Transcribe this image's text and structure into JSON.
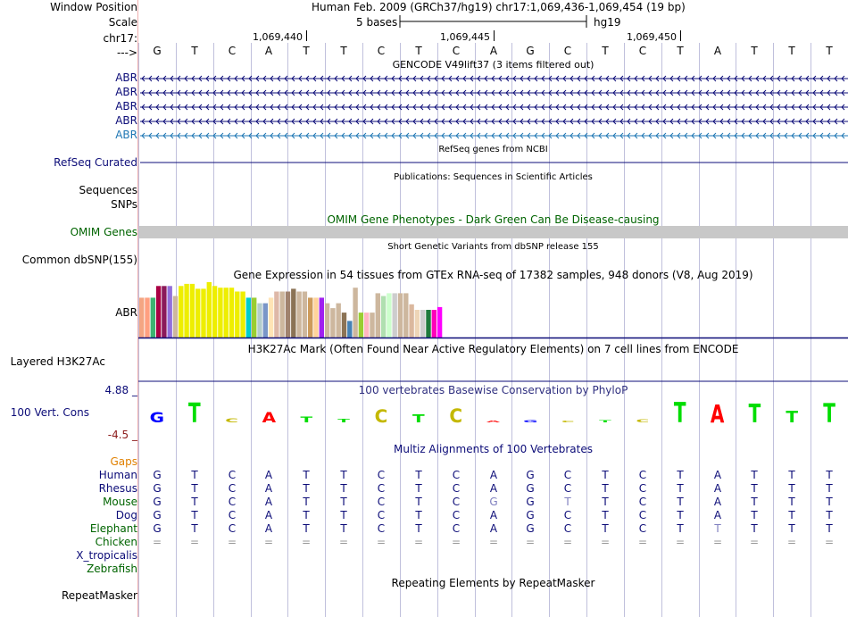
{
  "colors": {
    "navy": "#0c0c78",
    "gencode_last": "#1f77b4",
    "omim_label": "#006400",
    "omim_bar": "#c8c8c8",
    "gaps": "#e08000",
    "guide": "#c0c0dc",
    "cons_title": "#303080",
    "maroon": "#8b1a1a"
  },
  "position": {
    "window_label": "Window Position",
    "scale_label": "Scale",
    "chrom_label": "chr17:",
    "arrow_label": "--->",
    "assembly_text": "Human Feb. 2009 (GRCh37/hg19)   chr17:1,069,436-1,069,454 (19 bp)",
    "scale_text": "5 bases",
    "db_text": "hg19",
    "ticks": [
      "1,069,440",
      "1,069,445",
      "1,069,450"
    ]
  },
  "bases": [
    "G",
    "T",
    "C",
    "A",
    "T",
    "T",
    "C",
    "T",
    "C",
    "A",
    "G",
    "C",
    "T",
    "C",
    "T",
    "A",
    "T",
    "T",
    "T"
  ],
  "tracks": {
    "gencode": {
      "title": "GENCODE V49lift37 (3 items filtered out)",
      "items": [
        "ABR",
        "ABR",
        "ABR",
        "ABR",
        "ABR"
      ]
    },
    "refseq": {
      "title": "RefSeq genes from NCBI",
      "label": "RefSeq Curated"
    },
    "pubs": {
      "title": "Publications: Sequences in Scientific Articles",
      "label1": "Sequences",
      "label2": "SNPs"
    },
    "omim": {
      "title": "OMIM Gene Phenotypes - Dark Green Can Be Disease-causing",
      "label": "OMIM Genes"
    },
    "dbsnp": {
      "title": "Short Genetic Variants from dbSNP release 155",
      "label": "Common dbSNP(155)"
    },
    "gtex": {
      "title": "Gene Expression in 54 tissues from GTEx RNA-seq of 17382 samples, 948 donors (V8, Aug 2019)",
      "label": "ABR",
      "bars": [
        {
          "value": 0.72,
          "color": "#f4a582"
        },
        {
          "value": 0.72,
          "color": "#ff9f80"
        },
        {
          "value": 0.72,
          "color": "#3cb371"
        },
        {
          "value": 0.93,
          "color": "#aa0044"
        },
        {
          "value": 0.93,
          "color": "#8b1a5a"
        },
        {
          "value": 0.93,
          "color": "#9370db"
        },
        {
          "value": 0.75,
          "color": "#cdb79e"
        },
        {
          "value": 0.93,
          "color": "#eeee00"
        },
        {
          "value": 0.97,
          "color": "#eeee00"
        },
        {
          "value": 0.97,
          "color": "#eeee00"
        },
        {
          "value": 0.88,
          "color": "#eeee00"
        },
        {
          "value": 0.88,
          "color": "#eeee00"
        },
        {
          "value": 1.0,
          "color": "#eeee00"
        },
        {
          "value": 0.93,
          "color": "#eeee00"
        },
        {
          "value": 0.9,
          "color": "#eeee00"
        },
        {
          "value": 0.9,
          "color": "#eeee00"
        },
        {
          "value": 0.9,
          "color": "#eeee00"
        },
        {
          "value": 0.83,
          "color": "#eeee00"
        },
        {
          "value": 0.83,
          "color": "#eeee00"
        },
        {
          "value": 0.72,
          "color": "#00cdcd"
        },
        {
          "value": 0.72,
          "color": "#9acd32"
        },
        {
          "value": 0.62,
          "color": "#b4cdcd"
        },
        {
          "value": 0.62,
          "color": "#7a96c8"
        },
        {
          "value": 0.72,
          "color": "#ffe4b5"
        },
        {
          "value": 0.83,
          "color": "#deb8a8"
        },
        {
          "value": 0.83,
          "color": "#cdb79e"
        },
        {
          "value": 0.83,
          "color": "#a0826e"
        },
        {
          "value": 0.88,
          "color": "#8b7355"
        },
        {
          "value": 0.83,
          "color": "#cdb79e"
        },
        {
          "value": 0.83,
          "color": "#cdb79e"
        },
        {
          "value": 0.72,
          "color": "#cd9b5b"
        },
        {
          "value": 0.72,
          "color": "#ffd39b"
        },
        {
          "value": 0.72,
          "color": "#a020f0"
        },
        {
          "value": 0.62,
          "color": "#cdb79e"
        },
        {
          "value": 0.53,
          "color": "#cdb79e"
        },
        {
          "value": 0.62,
          "color": "#cdb79e"
        },
        {
          "value": 0.45,
          "color": "#8b7355"
        },
        {
          "value": 0.3,
          "color": "#4682b4"
        },
        {
          "value": 0.9,
          "color": "#cdb79e"
        },
        {
          "value": 0.45,
          "color": "#9acd32"
        },
        {
          "value": 0.45,
          "color": "#ffb6c1"
        },
        {
          "value": 0.45,
          "color": "#cdb79e"
        },
        {
          "value": 0.8,
          "color": "#cdb79e"
        },
        {
          "value": 0.75,
          "color": "#b0e0b0"
        },
        {
          "value": 0.8,
          "color": "#ccffcc"
        },
        {
          "value": 0.8,
          "color": "#cdcdcd"
        },
        {
          "value": 0.8,
          "color": "#cdb79e"
        },
        {
          "value": 0.8,
          "color": "#cdb79e"
        },
        {
          "value": 0.6,
          "color": "#dbb89e"
        },
        {
          "value": 0.5,
          "color": "#eed5b7"
        },
        {
          "value": 0.5,
          "color": "#cdcdcd"
        },
        {
          "value": 0.5,
          "color": "#1e7a3c"
        },
        {
          "value": 0.5,
          "color": "#ff00bb"
        },
        {
          "value": 0.55,
          "color": "#ff00ff"
        }
      ]
    },
    "h3k27ac": {
      "title": "H3K27Ac Mark (Often Found Near Active Regulatory Elements) on 7 cell lines from ENCODE",
      "label": "Layered H3K27Ac"
    },
    "cons": {
      "title": "100 vertebrates Basewise Conservation by PhyloP",
      "label": "100 Vert. Cons",
      "ymax": "4.88 _",
      "ymin": "-4.5 _",
      "scores": [
        2.2,
        4.2,
        0.9,
        2.2,
        1.3,
        0.7,
        2.8,
        1.7,
        3.0,
        0.4,
        0.5,
        0.3,
        0.5,
        0.6,
        4.4,
        3.9,
        4.0,
        2.5,
        4.1
      ]
    },
    "multiz": {
      "title": "Multiz Alignments of 100 Vertebrates",
      "gaps_label": "Gaps",
      "species": [
        {
          "name": "Human",
          "color": "#0c0c78",
          "seq": [
            "G",
            "T",
            "C",
            "A",
            "T",
            "T",
            "C",
            "T",
            "C",
            "A",
            "G",
            "C",
            "T",
            "C",
            "T",
            "A",
            "T",
            "T",
            "T"
          ]
        },
        {
          "name": "Rhesus",
          "color": "#0c0c78",
          "seq": [
            "G",
            "T",
            "C",
            "A",
            "T",
            "T",
            "C",
            "T",
            "C",
            "A",
            "G",
            "C",
            "T",
            "C",
            "T",
            "A",
            "T",
            "T",
            "T"
          ]
        },
        {
          "name": "Mouse",
          "color": "#006400",
          "seq": [
            "G",
            "T",
            "C",
            "A",
            "T",
            "T",
            "C",
            "T",
            "C",
            "G",
            "G",
            "T",
            "T",
            "C",
            "T",
            "A",
            "T",
            "T",
            "T"
          ]
        },
        {
          "name": "Dog",
          "color": "#0c0c78",
          "seq": [
            "G",
            "T",
            "C",
            "A",
            "T",
            "T",
            "C",
            "T",
            "C",
            "A",
            "G",
            "C",
            "T",
            "C",
            "T",
            "A",
            "T",
            "T",
            "T"
          ]
        },
        {
          "name": "Elephant",
          "color": "#006400",
          "seq": [
            "G",
            "T",
            "C",
            "A",
            "T",
            "T",
            "C",
            "T",
            "C",
            "A",
            "G",
            "C",
            "T",
            "C",
            "T",
            "T",
            "T",
            "T",
            "T"
          ]
        },
        {
          "name": "Chicken",
          "color": "#006400",
          "seq": [
            "=",
            "=",
            "=",
            "=",
            "=",
            "=",
            "=",
            "=",
            "=",
            "=",
            "=",
            "=",
            "=",
            "=",
            "=",
            "=",
            "=",
            "=",
            "="
          ]
        },
        {
          "name": "X_tropicalis",
          "color": "#0c0c78",
          "seq": []
        },
        {
          "name": "Zebrafish",
          "color": "#006400",
          "seq": []
        }
      ]
    },
    "rmsk": {
      "title": "Repeating Elements by RepeatMasker",
      "label": "RepeatMasker"
    }
  }
}
